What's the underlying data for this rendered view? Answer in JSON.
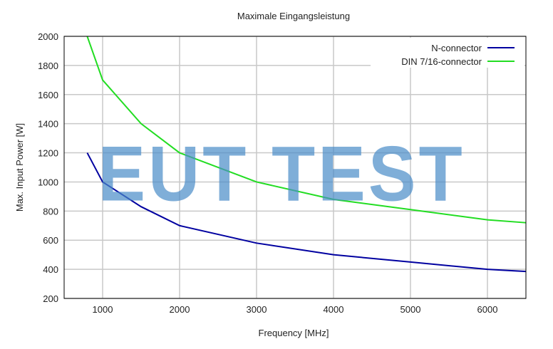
{
  "chart_data": {
    "type": "line",
    "title": "Maximale Eingangsleistung",
    "xlabel": "Frequency [MHz]",
    "ylabel": "Max. Input Power [W]",
    "xlim": [
      500,
      6500
    ],
    "ylim": [
      200,
      2000
    ],
    "xticks": [
      1000,
      2000,
      3000,
      4000,
      5000,
      6000
    ],
    "yticks": [
      200,
      400,
      600,
      800,
      1000,
      1200,
      1400,
      1600,
      1800,
      2000
    ],
    "grid": true,
    "legend_placement": "top-right",
    "series": [
      {
        "name": "N-connector",
        "color": "#0000a0",
        "x": [
          800,
          1000,
          1500,
          2000,
          3000,
          4000,
          5000,
          6000,
          6500
        ],
        "y": [
          1200,
          1000,
          830,
          700,
          580,
          500,
          450,
          400,
          385
        ]
      },
      {
        "name": "DIN 7/16-connector",
        "color": "#22dd22",
        "x": [
          800,
          1000,
          1500,
          2000,
          3000,
          4000,
          5000,
          6000,
          6500
        ],
        "y": [
          2000,
          1700,
          1400,
          1200,
          1000,
          880,
          810,
          740,
          720
        ]
      }
    ]
  },
  "watermark": {
    "text": "EUT TEST",
    "color": "#4a8cc8"
  }
}
